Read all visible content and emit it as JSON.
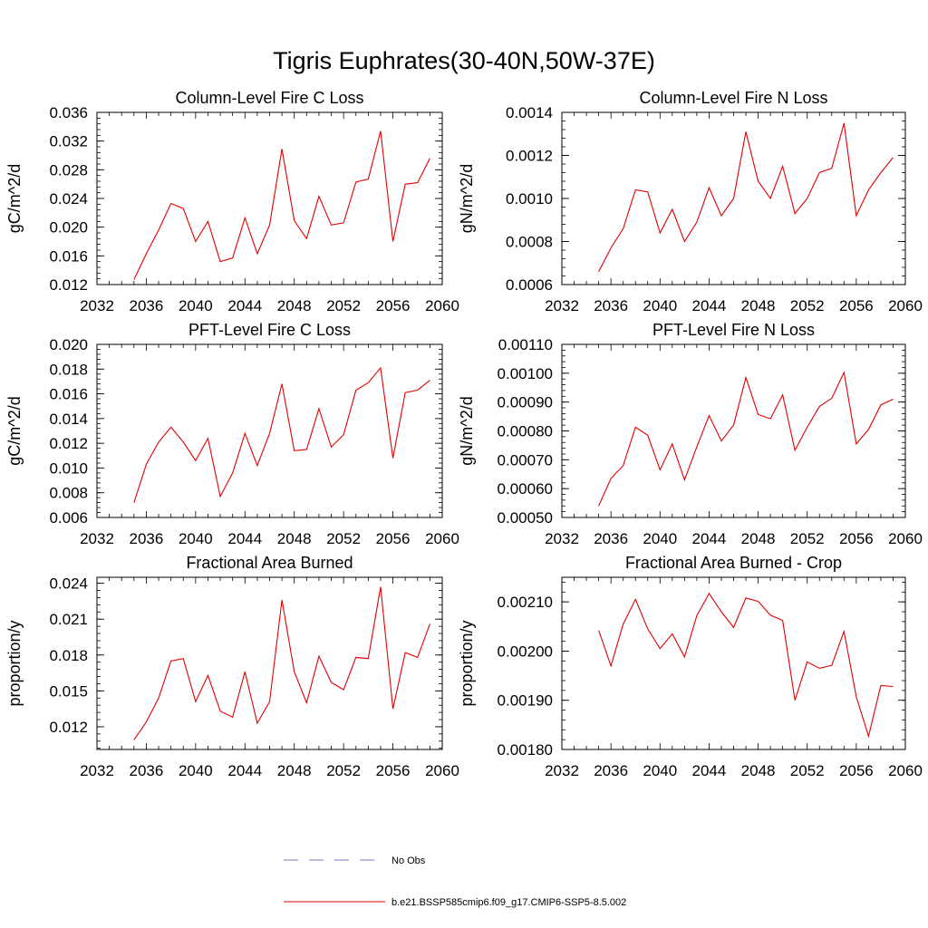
{
  "title": "Tigris Euphrates(30-40N,50W-37E)",
  "legend": {
    "placement": "bottom-center",
    "entries": [
      {
        "label": "No Obs",
        "color": "#7777bb",
        "dash": "dashed"
      },
      {
        "label": "b.e21.BSSP585cmip6.f09_g17.CMIP6-SSP5-8.5.002",
        "color": "#e00000",
        "dash": "solid"
      }
    ]
  },
  "chart_data": [
    {
      "type": "line",
      "title": "Column-Level Fire C Loss",
      "ylabel": "gC/m^2/d",
      "xlim": [
        2032,
        2060
      ],
      "ylim": [
        0.012,
        0.036
      ],
      "xticks": [
        "2032",
        "2036",
        "2040",
        "2044",
        "2048",
        "2052",
        "2056",
        "2060"
      ],
      "yticks": [
        "0.012",
        "0.016",
        "0.020",
        "0.024",
        "0.028",
        "0.032",
        "0.036"
      ],
      "x": [
        2035,
        2036,
        2037,
        2038,
        2039,
        2040,
        2041,
        2042,
        2043,
        2044,
        2045,
        2046,
        2047,
        2048,
        2049,
        2050,
        2051,
        2052,
        2053,
        2054,
        2055,
        2056,
        2057,
        2058,
        2059
      ],
      "series": [
        {
          "color": "#e00000",
          "values": [
            0.0127,
            0.0163,
            0.0196,
            0.0233,
            0.0226,
            0.018,
            0.0208,
            0.0152,
            0.0157,
            0.0213,
            0.0163,
            0.0203,
            0.0309,
            0.0209,
            0.0184,
            0.0243,
            0.0203,
            0.0206,
            0.0263,
            0.0267,
            0.0334,
            0.018,
            0.026,
            0.0262,
            0.0296
          ]
        }
      ]
    },
    {
      "type": "line",
      "title": "Column-Level Fire N Loss",
      "ylabel": "gN/m^2/d",
      "xlim": [
        2032,
        2060
      ],
      "ylim": [
        0.0006,
        0.0014
      ],
      "xticks": [
        "2032",
        "2036",
        "2040",
        "2044",
        "2048",
        "2052",
        "2056",
        "2060"
      ],
      "yticks": [
        "0.0006",
        "0.0008",
        "0.0010",
        "0.0012",
        "0.0014"
      ],
      "x": [
        2035,
        2036,
        2037,
        2038,
        2039,
        2040,
        2041,
        2042,
        2043,
        2044,
        2045,
        2046,
        2047,
        2048,
        2049,
        2050,
        2051,
        2052,
        2053,
        2054,
        2055,
        2056,
        2057,
        2058,
        2059
      ],
      "series": [
        {
          "color": "#e00000",
          "values": [
            0.00066,
            0.00077,
            0.00086,
            0.00104,
            0.00103,
            0.00084,
            0.00095,
            0.0008,
            0.00089,
            0.00105,
            0.00092,
            0.001,
            0.00131,
            0.00108,
            0.001,
            0.00115,
            0.00093,
            0.001,
            0.00112,
            0.00114,
            0.00135,
            0.00092,
            0.00104,
            0.00112,
            0.00119
          ]
        }
      ]
    },
    {
      "type": "line",
      "title": "PFT-Level Fire C Loss",
      "ylabel": "gC/m^2/d",
      "xlim": [
        2032,
        2060
      ],
      "ylim": [
        0.006,
        0.02
      ],
      "xticks": [
        "2032",
        "2036",
        "2040",
        "2044",
        "2048",
        "2052",
        "2056",
        "2060"
      ],
      "yticks": [
        "0.006",
        "0.008",
        "0.010",
        "0.012",
        "0.014",
        "0.016",
        "0.018",
        "0.020"
      ],
      "x": [
        2035,
        2036,
        2037,
        2038,
        2039,
        2040,
        2041,
        2042,
        2043,
        2044,
        2045,
        2046,
        2047,
        2048,
        2049,
        2050,
        2051,
        2052,
        2053,
        2054,
        2055,
        2056,
        2057,
        2058,
        2059
      ],
      "series": [
        {
          "color": "#e00000",
          "values": [
            0.0072,
            0.0103,
            0.0121,
            0.0133,
            0.0121,
            0.0106,
            0.0124,
            0.0077,
            0.0096,
            0.0128,
            0.0102,
            0.0128,
            0.0168,
            0.0114,
            0.0115,
            0.0148,
            0.0117,
            0.0127,
            0.0163,
            0.0169,
            0.0181,
            0.0108,
            0.0161,
            0.0163,
            0.0171
          ]
        }
      ]
    },
    {
      "type": "line",
      "title": "PFT-Level Fire N Loss",
      "ylabel": "gN/m^2/d",
      "xlim": [
        2032,
        2060
      ],
      "ylim": [
        0.0005,
        0.0011
      ],
      "xticks": [
        "2032",
        "2036",
        "2040",
        "2044",
        "2048",
        "2052",
        "2056",
        "2060"
      ],
      "yticks": [
        "0.00050",
        "0.00060",
        "0.00070",
        "0.00080",
        "0.00090",
        "0.00100",
        "0.00110"
      ],
      "x": [
        2035,
        2036,
        2037,
        2038,
        2039,
        2040,
        2041,
        2042,
        2043,
        2044,
        2045,
        2046,
        2047,
        2048,
        2049,
        2050,
        2051,
        2052,
        2053,
        2054,
        2055,
        2056,
        2057,
        2058,
        2059
      ],
      "series": [
        {
          "color": "#e00000",
          "values": [
            0.00054,
            0.000635,
            0.00068,
            0.000813,
            0.000785,
            0.000665,
            0.000755,
            0.00063,
            0.000745,
            0.000853,
            0.000765,
            0.00082,
            0.000985,
            0.000857,
            0.000842,
            0.000925,
            0.000733,
            0.000813,
            0.000885,
            0.000913,
            0.001003,
            0.000755,
            0.000805,
            0.00089,
            0.00091
          ]
        }
      ]
    },
    {
      "type": "line",
      "title": "Fractional Area Burned",
      "ylabel": "proportion/y",
      "xlim": [
        2032,
        2060
      ],
      "ylim": [
        0.0101,
        0.0245
      ],
      "xticks": [
        "2032",
        "2036",
        "2040",
        "2044",
        "2048",
        "2052",
        "2056",
        "2060"
      ],
      "yticks": [
        "0.012",
        "0.015",
        "0.018",
        "0.021",
        "0.024"
      ],
      "x": [
        2035,
        2036,
        2037,
        2038,
        2039,
        2040,
        2041,
        2042,
        2043,
        2044,
        2045,
        2046,
        2047,
        2048,
        2049,
        2050,
        2051,
        2052,
        2053,
        2054,
        2055,
        2056,
        2057,
        2058,
        2059
      ],
      "series": [
        {
          "color": "#e00000",
          "values": [
            0.0109,
            0.0124,
            0.0144,
            0.0175,
            0.0177,
            0.0141,
            0.0163,
            0.0133,
            0.0128,
            0.0166,
            0.0123,
            0.0141,
            0.0226,
            0.0166,
            0.014,
            0.0179,
            0.0157,
            0.0151,
            0.0178,
            0.0177,
            0.0237,
            0.0135,
            0.0182,
            0.0178,
            0.0206
          ]
        }
      ]
    },
    {
      "type": "line",
      "title": "Fractional Area Burned - Crop",
      "ylabel": "proportion/y",
      "xlim": [
        2032,
        2060
      ],
      "ylim": [
        0.0018,
        0.00215
      ],
      "xticks": [
        "2032",
        "2036",
        "2040",
        "2044",
        "2048",
        "2052",
        "2056",
        "2060"
      ],
      "yticks": [
        "0.00180",
        "0.00190",
        "0.00200",
        "0.00210"
      ],
      "x": [
        2035,
        2036,
        2037,
        2038,
        2039,
        2040,
        2041,
        2042,
        2043,
        2044,
        2045,
        2046,
        2047,
        2048,
        2049,
        2050,
        2051,
        2052,
        2053,
        2054,
        2055,
        2056,
        2057,
        2058,
        2059
      ],
      "series": [
        {
          "color": "#e00000",
          "values": [
            0.002042,
            0.00197,
            0.002055,
            0.002105,
            0.002045,
            0.002005,
            0.002035,
            0.001988,
            0.002072,
            0.002117,
            0.00208,
            0.002048,
            0.002108,
            0.002101,
            0.002073,
            0.002062,
            0.0019,
            0.001978,
            0.001965,
            0.001971,
            0.00204,
            0.001907,
            0.001827,
            0.00193,
            0.001928
          ]
        }
      ]
    }
  ]
}
